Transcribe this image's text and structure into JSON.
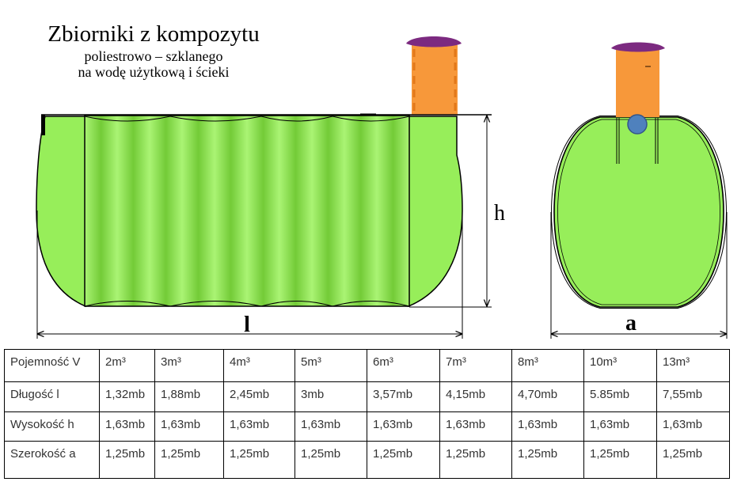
{
  "title": "Zbiorniki z kompozytu",
  "subtitle": [
    "poliestrowo – szklanego",
    "na wodę użytkową i ścieki"
  ],
  "dimension_labels": {
    "height": "h",
    "length": "l",
    "width": "a"
  },
  "colors": {
    "tank_green": "#97EE5A",
    "stripe_light": "#AAF474",
    "stripe_dark": "#73CB37",
    "riser_orange": "#F7983A",
    "riser_dash": "#E2781A",
    "cap_purple": "#7C2A80",
    "pipe_blue": "#4F81BD"
  },
  "table": {
    "rows": [
      {
        "label": "Pojemność V",
        "values": [
          "2m³",
          "3m³",
          "4m³",
          "5m³",
          "6m³",
          "7m³",
          "8m³",
          "10m³",
          "13m³"
        ]
      },
      {
        "label": "Długość l",
        "values": [
          "1,32mb",
          "1,88mb",
          "2,45mb",
          "3mb",
          "3,57mb",
          "4,15mb",
          "4,70mb",
          "5.85mb",
          "7,55mb"
        ]
      },
      {
        "label": "Wysokość h",
        "values": [
          "1,63mb",
          "1,63mb",
          "1,63mb",
          "1,63mb",
          "1,63mb",
          "1,63mb",
          "1,63mb",
          "1,63mb",
          "1,63mb"
        ]
      },
      {
        "label": "Szerokość a",
        "values": [
          "1,25mb",
          "1,25mb",
          "1,25mb",
          "1,25mb",
          "1,25mb",
          "1,25mb",
          "1,25mb",
          "1,25mb",
          "1,25mb"
        ]
      }
    ]
  }
}
